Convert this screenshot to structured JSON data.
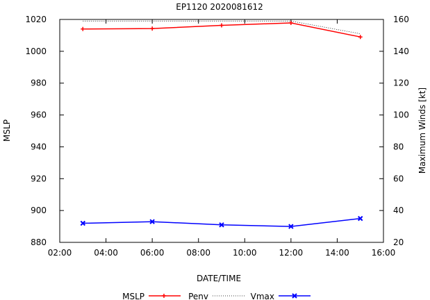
{
  "chart_data": {
    "type": "line",
    "title": "EP1120 2020081612",
    "xlabel": "DATE/TIME",
    "ylabel_left": "MSLP",
    "ylabel_right": "Maximum Winds [kt]",
    "x_ticks": [
      "02:00",
      "04:00",
      "06:00",
      "08:00",
      "10:00",
      "12:00",
      "14:00",
      "16:00"
    ],
    "x_tick_hours": [
      2,
      4,
      6,
      8,
      10,
      12,
      14,
      16
    ],
    "xlim_hours": [
      2,
      16
    ],
    "y_left_ticks": [
      "880",
      "900",
      "920",
      "940",
      "960",
      "980",
      "1000",
      "1020"
    ],
    "y_left_tick_values": [
      880,
      900,
      920,
      940,
      960,
      980,
      1000,
      1020
    ],
    "ylim_left": [
      880,
      1020
    ],
    "y_right_ticks": [
      "20",
      "40",
      "60",
      "80",
      "100",
      "120",
      "140",
      "160"
    ],
    "y_right_tick_values": [
      20,
      40,
      60,
      80,
      100,
      120,
      140,
      160
    ],
    "ylim_right": [
      20,
      160
    ],
    "x_hours": [
      3,
      6,
      9,
      12,
      15
    ],
    "series": [
      {
        "name": "MSLP",
        "axis": "left",
        "color": "#ff0000",
        "style": "solid",
        "marker": "plus",
        "values": [
          1014,
          1014.3,
          1016.3,
          1017.8,
          1009
        ]
      },
      {
        "name": "Penv",
        "axis": "left",
        "color": "#000000",
        "style": "dotted",
        "marker": "none",
        "values": [
          1019,
          1019,
          1019,
          1019,
          1011
        ]
      },
      {
        "name": "Vmax",
        "axis": "right",
        "color": "#0000ff",
        "style": "solid",
        "marker": "x",
        "values": [
          32,
          33,
          31,
          30,
          35
        ]
      }
    ],
    "legend": {
      "position": "bottom",
      "entries": [
        "MSLP",
        "Penv",
        "Vmax"
      ]
    }
  }
}
